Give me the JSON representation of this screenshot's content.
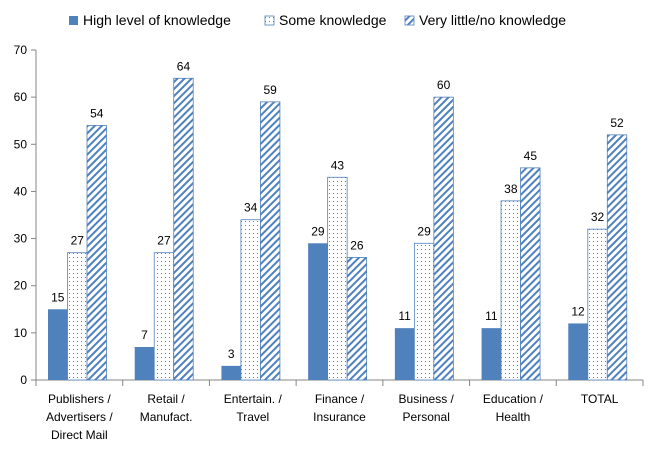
{
  "chart_data": {
    "type": "bar",
    "categories": [
      [
        "Publishers /",
        "Advertisers /",
        "Direct Mail"
      ],
      [
        "Retail /",
        "Manufact."
      ],
      [
        "Entertain. /",
        "Travel"
      ],
      [
        "Finance /",
        "Insurance"
      ],
      [
        "Business /",
        "Personal"
      ],
      [
        "Education /",
        "Health"
      ],
      [
        "TOTAL"
      ]
    ],
    "series": [
      {
        "name": "High level of knowledge",
        "values": [
          15,
          7,
          3,
          29,
          11,
          11,
          12
        ],
        "color": "#4f81bd",
        "pattern": "solid"
      },
      {
        "name": "Some knowledge",
        "values": [
          27,
          27,
          34,
          43,
          29,
          38,
          32
        ],
        "color": "#4f81bd",
        "pattern": "dots"
      },
      {
        "name": "Very little/no knowledge",
        "values": [
          54,
          64,
          59,
          26,
          60,
          45,
          52
        ],
        "color": "#4f81bd",
        "pattern": "diagonal"
      }
    ],
    "ylim": [
      0,
      70
    ],
    "yticks": [
      0,
      10,
      20,
      30,
      40,
      50,
      60,
      70
    ],
    "grid": false,
    "legend": "top",
    "data_labels": true
  }
}
